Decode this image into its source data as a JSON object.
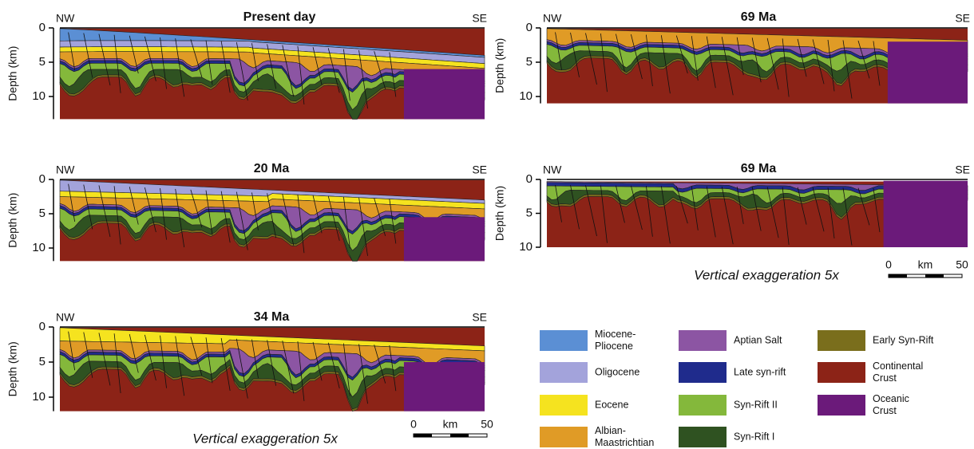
{
  "panels": [
    {
      "title": "Present day",
      "left": "NW",
      "right": "SE",
      "ylabel": "Depth (km)",
      "yticks": [
        0,
        5,
        10
      ]
    },
    {
      "title": "69 Ma",
      "left": "NW",
      "right": "SE",
      "ylabel": "Depth (km)",
      "yticks": [
        0,
        5,
        10
      ]
    },
    {
      "title": "20 Ma",
      "left": "NW",
      "right": "SE",
      "ylabel": "Depth (km)",
      "yticks": [
        0,
        5,
        10
      ]
    },
    {
      "title": "69 Ma",
      "left": "NW",
      "right": "SE",
      "ylabel": "Depth (km)",
      "yticks": [
        0,
        5,
        10
      ]
    },
    {
      "title": "34 Ma",
      "left": "NW",
      "right": "SE",
      "ylabel": "Depth (km)",
      "yticks": [
        0,
        5,
        10
      ]
    }
  ],
  "scale_bars": [
    {
      "caption": "Vertical exaggeration 5x",
      "start": "0",
      "unit": "km",
      "end": "50"
    },
    {
      "caption": "Vertical exaggeration 5x",
      "start": "0",
      "unit": "km",
      "end": "50"
    }
  ],
  "legend": [
    {
      "label": [
        "Miocene-",
        "Pliocene"
      ],
      "color": "#5b8fd4"
    },
    {
      "label": [
        "Oligocene"
      ],
      "color": "#a3a3db"
    },
    {
      "label": [
        "Eocene"
      ],
      "color": "#f5e31f"
    },
    {
      "label": [
        "Albian-",
        "Maastrichtian"
      ],
      "color": "#e09b26"
    },
    {
      "label": [
        "Aptian Salt"
      ],
      "color": "#8c55a3"
    },
    {
      "label": [
        "Late syn-rift"
      ],
      "color": "#1f2b8c"
    },
    {
      "label": [
        "Syn-Rift II"
      ],
      "color": "#84b83b"
    },
    {
      "label": [
        "Syn-Rift I"
      ],
      "color": "#2f5221"
    },
    {
      "label": [
        "Early Syn-Rift"
      ],
      "color": "#7a6e1c"
    },
    {
      "label": [
        "Continental",
        "Crust"
      ],
      "color": "#8c2317"
    },
    {
      "label": [
        "Oceanic",
        "Crust"
      ],
      "color": "#6b1a7a"
    }
  ]
}
